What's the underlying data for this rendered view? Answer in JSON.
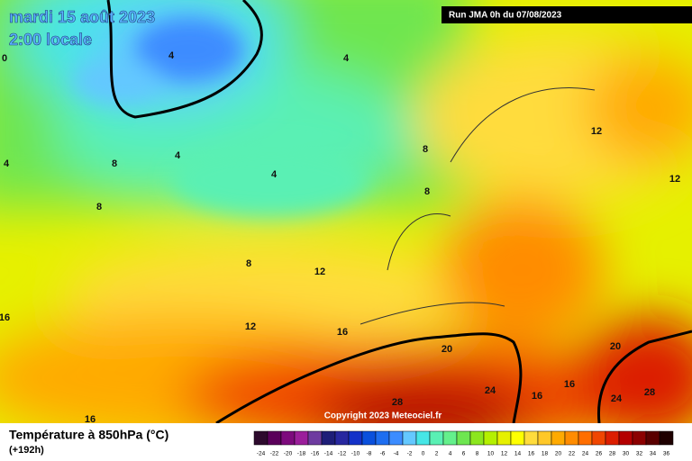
{
  "header": {
    "date": "mardi 15 août 2023",
    "time": "2:00 locale",
    "run": "Run JMA 0h du 07/08/2023"
  },
  "map": {
    "copyright": "Copyright 2023 Meteociel.fr",
    "contour_labels": [
      0,
      4,
      4,
      4,
      4,
      4,
      8,
      8,
      8,
      8,
      8,
      12,
      12,
      12,
      12,
      16,
      16,
      16,
      16,
      16,
      20,
      20,
      24,
      24,
      28,
      28
    ]
  },
  "footer": {
    "title": "Température à 850hPa (°C)",
    "subtitle": "(+192h)"
  },
  "color_scale": {
    "labels": [
      -24,
      -22,
      -20,
      -18,
      -16,
      -14,
      -12,
      -10,
      -8,
      -6,
      -4,
      -2,
      0,
      2,
      4,
      6,
      8,
      10,
      12,
      14,
      16,
      18,
      20,
      22,
      24,
      26,
      28,
      30,
      32,
      34,
      36
    ],
    "colors": [
      "#2d0a2d",
      "#5a005a",
      "#7d0a7d",
      "#9b1e9b",
      "#6e3ca0",
      "#1e1e78",
      "#2828a0",
      "#1432c8",
      "#0a50dc",
      "#1e6ef0",
      "#3c8cff",
      "#64c8ff",
      "#46e6e6",
      "#5af0b4",
      "#64f08c",
      "#6ee650",
      "#8ce61e",
      "#b4f000",
      "#e6f000",
      "#ffff00",
      "#ffdc3c",
      "#ffc828",
      "#ffaa00",
      "#ff8c00",
      "#ff6e00",
      "#f04600",
      "#dc1e00",
      "#b40000",
      "#8c0000",
      "#5a0000",
      "#1e0000"
    ]
  }
}
